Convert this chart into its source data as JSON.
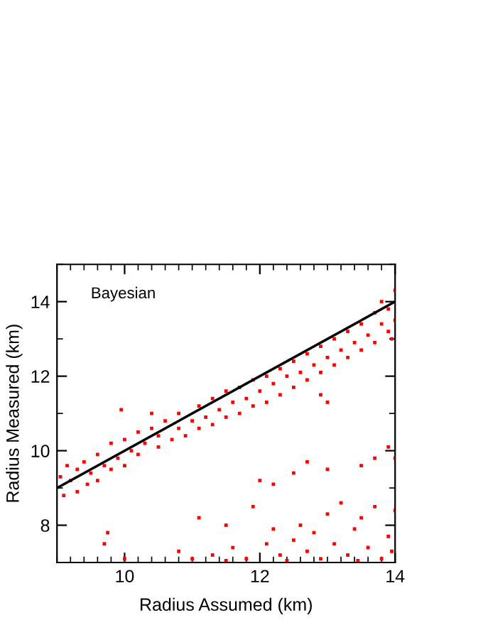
{
  "chart_data": {
    "type": "scatter",
    "xlabel": "Radius Assumed (km)",
    "ylabel": "Radius Measured (km)",
    "annotations": [
      "Bayesian"
    ],
    "xlim": [
      9,
      14
    ],
    "ylim": [
      7,
      15
    ],
    "xticks": [
      10,
      12,
      14
    ],
    "yticks": [
      8,
      10,
      12,
      14
    ],
    "grid": false,
    "series": [
      {
        "color": "#ff0000",
        "marker": "square",
        "x": [
          9.05,
          9.1,
          9.15,
          9.2,
          9.3,
          9.3,
          9.4,
          9.45,
          9.5,
          9.6,
          9.6,
          9.7,
          9.8,
          9.8,
          9.9,
          10.0,
          10.0,
          10.1,
          10.2,
          10.2,
          10.3,
          10.4,
          10.5,
          10.5,
          10.6,
          10.7,
          10.8,
          10.8,
          10.9,
          11.0,
          11.1,
          11.1,
          11.2,
          11.3,
          11.3,
          11.4,
          11.5,
          11.5,
          11.6,
          11.7,
          11.7,
          11.8,
          11.9,
          11.9,
          12.0,
          12.1,
          12.1,
          12.2,
          12.3,
          12.3,
          12.4,
          12.5,
          12.5,
          12.6,
          12.7,
          12.7,
          12.8,
          12.9,
          12.9,
          13.0,
          13.1,
          13.1,
          13.2,
          13.3,
          13.3,
          13.4,
          13.5,
          13.5,
          13.6,
          13.7,
          13.7,
          13.8,
          13.8,
          13.9,
          13.9,
          14.0,
          14.0,
          13.95,
          9.75,
          9.7,
          9.95,
          10.4,
          13.0,
          12.9,
          11.1,
          11.5,
          11.9,
          12.0,
          12.2,
          12.5,
          12.7,
          13.0,
          13.5,
          13.9,
          13.7,
          14.0,
          10.8,
          11.0,
          11.3,
          11.6,
          11.8,
          12.1,
          12.2,
          12.3,
          12.5,
          12.6,
          12.7,
          12.8,
          12.9,
          13.0,
          13.1,
          13.2,
          13.3,
          13.4,
          13.5,
          13.6,
          13.7,
          13.8,
          13.9,
          14.0,
          13.95,
          13.45,
          12.4,
          11.5,
          10.0
        ],
        "values": [
          9.3,
          8.8,
          9.6,
          9.2,
          9.5,
          8.9,
          9.7,
          9.1,
          9.4,
          9.9,
          9.2,
          9.6,
          10.2,
          9.5,
          9.8,
          10.3,
          9.6,
          10.0,
          10.5,
          9.9,
          10.2,
          10.6,
          10.1,
          10.4,
          10.8,
          10.3,
          10.6,
          11.0,
          10.4,
          10.8,
          11.2,
          10.6,
          10.9,
          11.4,
          10.7,
          11.1,
          11.6,
          10.9,
          11.3,
          11.7,
          11.0,
          11.4,
          11.9,
          11.2,
          11.6,
          12.0,
          11.3,
          11.8,
          12.2,
          11.5,
          12.0,
          12.4,
          11.7,
          12.1,
          12.6,
          11.9,
          12.3,
          12.8,
          12.1,
          12.5,
          13.0,
          12.3,
          12.7,
          13.2,
          12.5,
          12.9,
          13.4,
          12.7,
          13.1,
          13.7,
          12.9,
          13.4,
          14.0,
          13.2,
          13.8,
          13.5,
          14.3,
          13.0,
          7.8,
          7.5,
          11.1,
          11.0,
          11.3,
          11.5,
          8.2,
          8.0,
          8.5,
          9.2,
          9.1,
          9.4,
          9.7,
          9.5,
          9.6,
          10.1,
          9.8,
          9.8,
          7.3,
          7.1,
          7.2,
          7.4,
          7.1,
          7.5,
          7.9,
          7.2,
          7.6,
          8.0,
          7.3,
          7.8,
          7.1,
          8.3,
          7.5,
          8.6,
          7.2,
          7.9,
          8.2,
          7.4,
          8.5,
          7.1,
          7.7,
          8.4,
          7.3,
          7.05,
          7.05,
          7.05,
          7.1
        ]
      },
      {
        "type": "line",
        "color": "#000000",
        "marker": "none",
        "line_style": "solid",
        "x": [
          9,
          14
        ],
        "values": [
          9,
          14
        ]
      }
    ]
  }
}
